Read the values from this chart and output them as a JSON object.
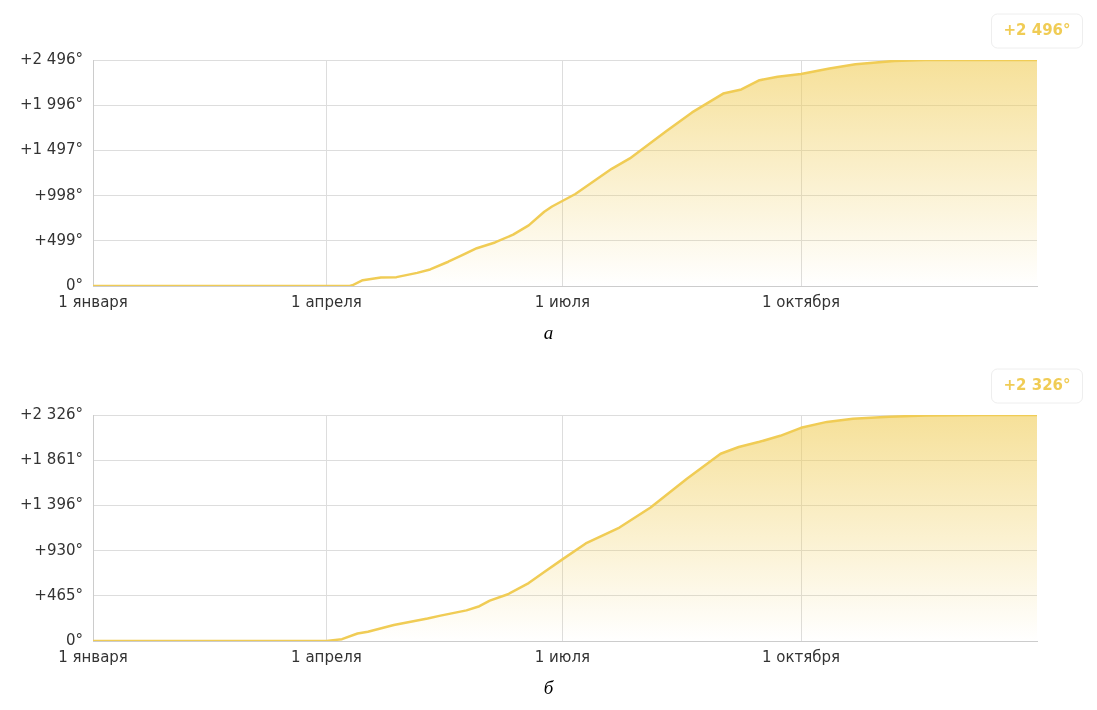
{
  "chart_data": [
    {
      "type": "area",
      "xlim": [
        "--01-01",
        "--12-31"
      ],
      "ylim": [
        0,
        2496
      ],
      "xticks": [
        {
          "value": "--01-01",
          "label": "1 января"
        },
        {
          "value": "--04-01",
          "label": "1 апреля"
        },
        {
          "value": "--07-01",
          "label": "1 июля"
        },
        {
          "value": "--10-01",
          "label": "1 октября"
        }
      ],
      "yticks": [
        {
          "value": 0,
          "label": "0°"
        },
        {
          "value": 499,
          "label": "+499°"
        },
        {
          "value": 998,
          "label": "+998°"
        },
        {
          "value": 1497,
          "label": "+1 497°"
        },
        {
          "value": 1996,
          "label": "+1 996°"
        },
        {
          "value": 2496,
          "label": "+2 496°"
        }
      ],
      "grid": true,
      "x": [
        "--01-01",
        "--04-10",
        "--04-11",
        "--04-15",
        "--04-22",
        "--04-28",
        "--05-06",
        "--05-11",
        "--05-18",
        "--05-29",
        "--06-05",
        "--06-12",
        "--06-18",
        "--06-24",
        "--06-27",
        "--07-06",
        "--07-20",
        "--07-27",
        "--08-10",
        "--08-20",
        "--09-01",
        "--09-08",
        "--09-15",
        "--09-22",
        "--10-01",
        "--10-12",
        "--10-22",
        "--11-06",
        "--11-18",
        "--12-31"
      ],
      "series": [
        {
          "color": "#f0cc55",
          "values": [
            0,
            0,
            8,
            64,
            94,
            98,
            145,
            183,
            268,
            417,
            481,
            567,
            670,
            820,
            878,
            1016,
            1294,
            1409,
            1709,
            1917,
            2125,
            2171,
            2273,
            2310,
            2342,
            2402,
            2449,
            2486,
            2496,
            2496
          ]
        }
      ],
      "annotations": [
        {
          "text": "+2 496°",
          "x": "--12-31",
          "y": 2496
        },
        "а"
      ]
    },
    {
      "type": "area",
      "xlim": [
        "--01-01",
        "--12-31"
      ],
      "ylim": [
        0,
        2326
      ],
      "xticks": [
        {
          "value": "--01-01",
          "label": "1 января"
        },
        {
          "value": "--04-01",
          "label": "1 апреля"
        },
        {
          "value": "--07-01",
          "label": "1 июля"
        },
        {
          "value": "--10-01",
          "label": "1 октября"
        }
      ],
      "yticks": [
        {
          "value": 0,
          "label": "0°"
        },
        {
          "value": 465,
          "label": "+465°"
        },
        {
          "value": 930,
          "label": "+930°"
        },
        {
          "value": 1396,
          "label": "+1 396°"
        },
        {
          "value": 1861,
          "label": "+1 861°"
        },
        {
          "value": 2326,
          "label": "+2 326°"
        }
      ],
      "grid": true,
      "x": [
        "--01-01",
        "--04-01",
        "--04-07",
        "--04-13",
        "--04-17",
        "--04-27",
        "--05-10",
        "--05-15",
        "--05-25",
        "--05-30",
        "--06-03",
        "--06-10",
        "--06-18",
        "--06-24",
        "--07-01",
        "--07-10",
        "--07-23",
        "--08-04",
        "--08-18",
        "--08-31",
        "--09-07",
        "--09-15",
        "--09-23",
        "--10-01",
        "--10-11",
        "--10-21",
        "--11-04",
        "--11-18",
        "--12-10",
        "--12-31"
      ],
      "series": [
        {
          "color": "#f0cc55",
          "values": [
            0,
            0,
            19,
            77,
            96,
            165,
            231,
            261,
            315,
            358,
            415,
            481,
            596,
            711,
            840,
            1004,
            1168,
            1374,
            1669,
            1927,
            1997,
            2050,
            2112,
            2194,
            2255,
            2288,
            2308,
            2320,
            2326,
            2326
          ]
        }
      ],
      "annotations": [
        {
          "text": "+2 326°",
          "x": "--12-31",
          "y": 2326
        },
        "б"
      ]
    }
  ]
}
